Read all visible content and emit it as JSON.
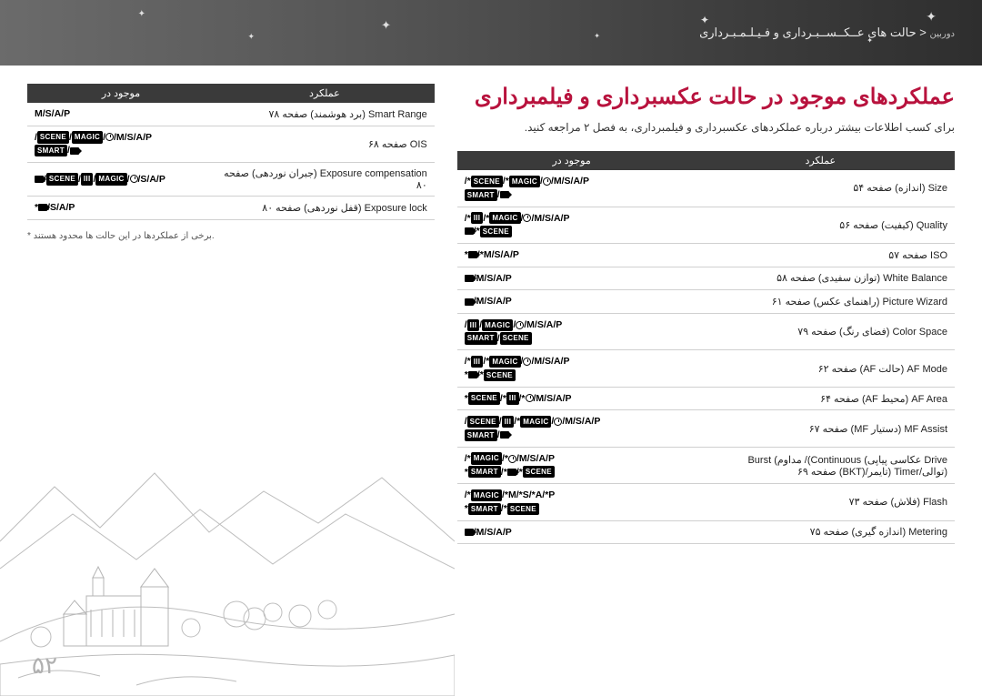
{
  "header": {
    "breadcrumb_small": "دوربین",
    "breadcrumb_sep": " < ",
    "breadcrumb_main": "حالت های عــکــســبـرداری و فـیـلـمـبـرداری"
  },
  "page_number": "۵۲",
  "right": {
    "title": "عملکردهای موجود در حالت عکسبرداری و فیلمبرداری",
    "intro": "برای کسب اطلاعات بیشتر درباره عملکردهای عکسبرداری و فیلمبرداری، به فصل ۲ مراجعه کنید.",
    "th_func": "عملکرد",
    "th_avail": "موجود در",
    "rows": [
      {
        "func": "Size (اندازه) صفحه ۵۴",
        "avail_html": "/*<span class='modebox'>SCENE</span>/*<span class='modebox'>MAGIC</span>/<span class='clockicon'></span>/M/S/A/P<br><span class='modebox'>SMART</span>/<span class='videoicon'></span>"
      },
      {
        "func": "Quality (کیفیت) صفحه ۵۶",
        "avail_html": "/*<span class='modebox'>III</span>/*<span class='modebox'>MAGIC</span>/<span class='clockicon'></span>/M/S/A/P<br><span class='videoicon'></span>/*<span class='modebox'>SCENE</span>"
      },
      {
        "func": "ISO صفحه ۵۷",
        "avail_html": "*<span class='videoicon'></span>/*M/S/A/P"
      },
      {
        "func": "White Balance (توازن سفیدی) صفحه ۵۸",
        "avail_html": "<span class='videoicon'></span>/M/S/A/P"
      },
      {
        "func": "Picture Wizard (راهنمای عکس) صفحه ۶۱",
        "avail_html": "<span class='videoicon'></span>/M/S/A/P"
      },
      {
        "func": "Color Space (فضای رنگ) صفحه ۷۹",
        "avail_html": "/<span class='modebox'>III</span>/<span class='modebox'>MAGIC</span>/<span class='clockicon'></span>/M/S/A/P<br><span class='modebox'>SMART</span>/<span class='modebox'>SCENE</span>"
      },
      {
        "func": "AF Mode (حالت AF) صفحه ۶۲",
        "avail_html": "/*<span class='modebox'>III</span>/*<span class='modebox'>MAGIC</span>/<span class='clockicon'></span>/M/S/A/P<br>*<span class='videoicon'></span>/*<span class='modebox'>SCENE</span>"
      },
      {
        "func": "AF Area (محیط AF) صفحه ۶۴",
        "avail_html": "*<span class='modebox'>SCENE</span>/*<span class='modebox'>III</span>/*<span class='clockicon'></span>/M/S/A/P"
      },
      {
        "func": "MF Assist (دستیار MF) صفحه ۶۷",
        "avail_html": "/<span class='modebox'>SCENE</span>/<span class='modebox'>III</span>/*<span class='modebox'>MAGIC</span>/<span class='clockicon'></span>/M/S/A/P<br><span class='modebox'>SMART</span>/<span class='videoicon'></span>"
      },
      {
        "func": "Drive عکاسی پیاپی) Continuous)/ مداوم) Burst (توالی/Timer (تایمر/(BKT) صفحه ۶۹",
        "avail_html": "/*<span class='modebox'>MAGIC</span>/*<span class='clockicon'></span>/M/S/A/P<br>*<span class='modebox'>SMART</span>/*<span class='videoicon'></span>/*<span class='modebox'>SCENE</span>"
      },
      {
        "func": "Flash (فلاش) صفحه ۷۳",
        "avail_html": "/*<span class='modebox'>MAGIC</span>/*M/*S/*A/*P<br>*<span class='modebox'>SMART</span>/*<span class='modebox'>SCENE</span>"
      },
      {
        "func": "Metering (اندازه گیری) صفحه ۷۵",
        "avail_html": "<span class='videoicon'></span>/M/S/A/P"
      }
    ]
  },
  "left": {
    "th_func": "عملکرد",
    "th_avail": "موجود در",
    "rows": [
      {
        "func": "Smart Range (برد هوشمند) صفحه ۷۸",
        "avail_html": "M/S/A/P"
      },
      {
        "func": "OIS صفحه ۶۸",
        "avail_html": "/<span class='modebox'>SCENE</span>/<span class='modebox'>MAGIC</span>/<span class='clockicon'></span>/M/S/A/P<br><span class='modebox'>SMART</span>/<span class='videoicon'></span>"
      },
      {
        "func": "Exposure compensation (جبران نوردهی) صفحه ۸۰",
        "avail_html": "<span class='videoicon'></span>/<span class='modebox'>SCENE</span>/<span class='modebox'>III</span>/<span class='modebox'>MAGIC</span>/<span class='clockicon'></span>/S/A/P"
      },
      {
        "func": "Exposure lock (قفل نوردهی) صفحه ۸۰",
        "avail_html": "*<span class='videoicon'></span>/S/A/P"
      }
    ],
    "note": "* برخی از عملکردها در این حالت ها محدود هستند."
  },
  "colors": {
    "title": "#b8123d",
    "header_bg_start": "#6b6b6b",
    "header_bg_end": "#2e2e2e",
    "th_bg": "#3a3a3a",
    "page_num": "#b0b0b0"
  }
}
